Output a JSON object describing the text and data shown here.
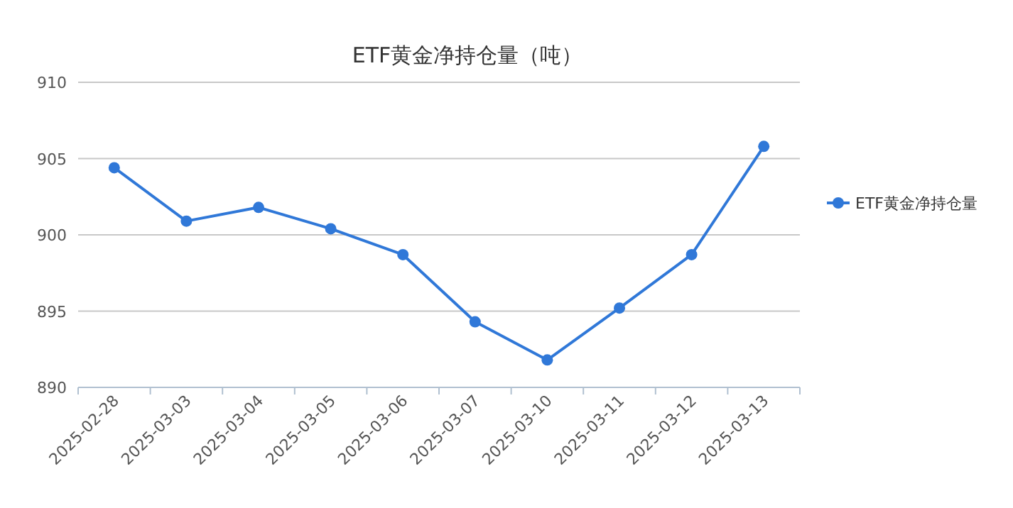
{
  "chart_data": {
    "type": "line",
    "title": "ETF黄金净持仓量（吨）",
    "categories": [
      "2025-02-28",
      "2025-03-03",
      "2025-03-04",
      "2025-03-05",
      "2025-03-06",
      "2025-03-07",
      "2025-03-10",
      "2025-03-11",
      "2025-03-12",
      "2025-03-13"
    ],
    "series": [
      {
        "name": "ETF黄金净持仓量",
        "color": "#3078d8",
        "values": [
          904.4,
          900.9,
          901.8,
          900.4,
          898.7,
          894.3,
          891.8,
          895.2,
          898.7,
          905.8
        ]
      }
    ],
    "ylim": [
      890,
      910
    ],
    "yticks": [
      890,
      895,
      900,
      905,
      910
    ],
    "grid": "y",
    "legend": "right",
    "marker": "circle"
  }
}
